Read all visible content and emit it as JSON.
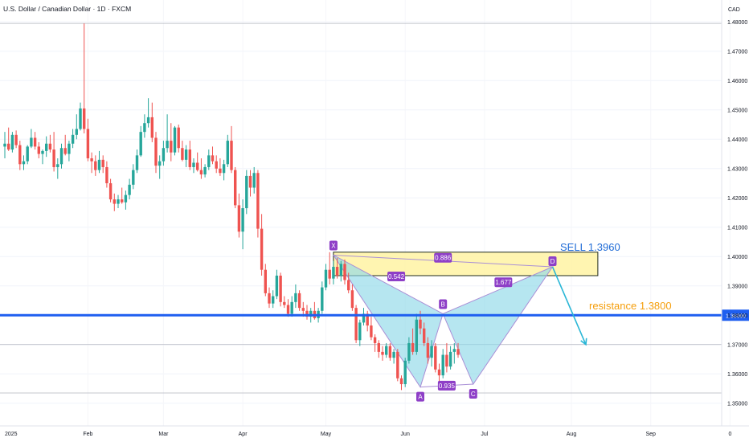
{
  "chart_data": {
    "type": "candlestick",
    "title": "U.S. Dollar / Canadian Dollar · 1D · FXCM",
    "currency": "CAD",
    "ylim": [
      1.345,
      1.482
    ],
    "y_ticks": [
      "1.48000",
      "1.47000",
      "1.46000",
      "1.45000",
      "1.44000",
      "1.43000",
      "1.42000",
      "1.41000",
      "1.40000",
      "1.39000",
      "1.38000",
      "1.37000",
      "1.36000",
      "1.35000"
    ],
    "x_ticks": [
      {
        "label": "2025",
        "i": 0
      },
      {
        "label": "Feb",
        "i": 22
      },
      {
        "label": "Mar",
        "i": 42
      },
      {
        "label": "Apr",
        "i": 63
      },
      {
        "label": "May",
        "i": 85
      },
      {
        "label": "Jun",
        "i": 106
      },
      {
        "label": "Jul",
        "i": 127
      },
      {
        "label": "Aug",
        "i": 150
      },
      {
        "label": "Sep",
        "i": 171
      },
      {
        "label": "0",
        "i": 192
      }
    ],
    "candles": [
      [
        1.4375,
        1.4425,
        1.4335,
        1.4385
      ],
      [
        1.4385,
        1.444,
        1.436,
        1.4365
      ],
      [
        1.4365,
        1.4425,
        1.4355,
        1.4415
      ],
      [
        1.4415,
        1.443,
        1.437,
        1.438
      ],
      [
        1.438,
        1.4395,
        1.4295,
        1.4315
      ],
      [
        1.4315,
        1.4345,
        1.4295,
        1.4325
      ],
      [
        1.4325,
        1.438,
        1.4315,
        1.4375
      ],
      [
        1.4375,
        1.4435,
        1.437,
        1.4405
      ],
      [
        1.4405,
        1.4425,
        1.4365,
        1.4375
      ],
      [
        1.4375,
        1.439,
        1.4335,
        1.435
      ],
      [
        1.435,
        1.4365,
        1.4315,
        1.436
      ],
      [
        1.436,
        1.441,
        1.434,
        1.4385
      ],
      [
        1.4385,
        1.4415,
        1.4355,
        1.4365
      ],
      [
        1.4365,
        1.4425,
        1.429,
        1.4305
      ],
      [
        1.4305,
        1.4335,
        1.4265,
        1.4315
      ],
      [
        1.4315,
        1.4385,
        1.43,
        1.437
      ],
      [
        1.437,
        1.4415,
        1.4345,
        1.435
      ],
      [
        1.435,
        1.4395,
        1.4325,
        1.4385
      ],
      [
        1.4385,
        1.4435,
        1.437,
        1.4415
      ],
      [
        1.4415,
        1.4485,
        1.44,
        1.4435
      ],
      [
        1.4435,
        1.4525,
        1.443,
        1.4505
      ],
      [
        1.4505,
        1.4795,
        1.442,
        1.4435
      ],
      [
        1.4435,
        1.447,
        1.4325,
        1.4335
      ],
      [
        1.4335,
        1.4355,
        1.4285,
        1.4325
      ],
      [
        1.4325,
        1.4345,
        1.4275,
        1.4295
      ],
      [
        1.4295,
        1.436,
        1.4285,
        1.433
      ],
      [
        1.433,
        1.4345,
        1.4285,
        1.4305
      ],
      [
        1.4305,
        1.4325,
        1.4235,
        1.425
      ],
      [
        1.425,
        1.4265,
        1.4185,
        1.4195
      ],
      [
        1.4195,
        1.4215,
        1.4155,
        1.418
      ],
      [
        1.418,
        1.421,
        1.4165,
        1.4195
      ],
      [
        1.4195,
        1.4235,
        1.418,
        1.4185
      ],
      [
        1.4185,
        1.4225,
        1.416,
        1.421
      ],
      [
        1.421,
        1.4265,
        1.4195,
        1.4245
      ],
      [
        1.4245,
        1.4315,
        1.423,
        1.4295
      ],
      [
        1.4295,
        1.4365,
        1.4285,
        1.4345
      ],
      [
        1.4345,
        1.4445,
        1.434,
        1.4425
      ],
      [
        1.4425,
        1.4485,
        1.4405,
        1.4455
      ],
      [
        1.4455,
        1.454,
        1.444,
        1.4475
      ],
      [
        1.4475,
        1.4525,
        1.439,
        1.4405
      ],
      [
        1.4405,
        1.4425,
        1.4285,
        1.431
      ],
      [
        1.431,
        1.4345,
        1.4265,
        1.4325
      ],
      [
        1.4325,
        1.4395,
        1.431,
        1.437
      ],
      [
        1.437,
        1.4485,
        1.4355,
        1.4395
      ],
      [
        1.4395,
        1.4455,
        1.4325,
        1.4355
      ],
      [
        1.4355,
        1.4445,
        1.4345,
        1.444
      ],
      [
        1.444,
        1.445,
        1.4355,
        1.437
      ],
      [
        1.437,
        1.4395,
        1.4325,
        1.433
      ],
      [
        1.433,
        1.438,
        1.4305,
        1.4365
      ],
      [
        1.4365,
        1.4395,
        1.4295,
        1.4305
      ],
      [
        1.4305,
        1.4335,
        1.4285,
        1.432
      ],
      [
        1.432,
        1.4355,
        1.429,
        1.4295
      ],
      [
        1.4295,
        1.4335,
        1.4265,
        1.428
      ],
      [
        1.428,
        1.4315,
        1.427,
        1.4305
      ],
      [
        1.4305,
        1.4365,
        1.4295,
        1.4345
      ],
      [
        1.4345,
        1.4375,
        1.4315,
        1.4325
      ],
      [
        1.4325,
        1.4345,
        1.4285,
        1.43
      ],
      [
        1.43,
        1.4335,
        1.4275,
        1.4285
      ],
      [
        1.4285,
        1.433,
        1.426,
        1.4315
      ],
      [
        1.4315,
        1.4415,
        1.4305,
        1.4395
      ],
      [
        1.4395,
        1.4445,
        1.4285,
        1.4295
      ],
      [
        1.4295,
        1.4305,
        1.4165,
        1.4175
      ],
      [
        1.4175,
        1.4215,
        1.4065,
        1.4085
      ],
      [
        1.4085,
        1.4195,
        1.4025,
        1.4165
      ],
      [
        1.4165,
        1.4295,
        1.4145,
        1.4275
      ],
      [
        1.4275,
        1.4295,
        1.4205,
        1.4235
      ],
      [
        1.4235,
        1.4305,
        1.4215,
        1.4285
      ],
      [
        1.4285,
        1.4295,
        1.4065,
        1.4095
      ],
      [
        1.4095,
        1.4145,
        1.3935,
        1.3955
      ],
      [
        1.3955,
        1.3975,
        1.3865,
        1.3875
      ],
      [
        1.3875,
        1.3895,
        1.3825,
        1.384
      ],
      [
        1.384,
        1.3885,
        1.3825,
        1.3865
      ],
      [
        1.3865,
        1.3955,
        1.3855,
        1.3935
      ],
      [
        1.3935,
        1.3945,
        1.383,
        1.3845
      ],
      [
        1.3845,
        1.3865,
        1.3825,
        1.3835
      ],
      [
        1.3835,
        1.3855,
        1.3795,
        1.3805
      ],
      [
        1.3805,
        1.3865,
        1.3795,
        1.3845
      ],
      [
        1.3845,
        1.3905,
        1.3825,
        1.3875
      ],
      [
        1.3875,
        1.3885,
        1.3815,
        1.3825
      ],
      [
        1.3825,
        1.3845,
        1.3795,
        1.3815
      ],
      [
        1.3815,
        1.3835,
        1.3785,
        1.3795
      ],
      [
        1.3795,
        1.3825,
        1.3775,
        1.3815
      ],
      [
        1.3815,
        1.3845,
        1.3785,
        1.379
      ],
      [
        1.379,
        1.3825,
        1.3775,
        1.3815
      ],
      [
        1.3815,
        1.3915,
        1.3805,
        1.3895
      ],
      [
        1.3895,
        1.3975,
        1.3885,
        1.3955
      ],
      [
        1.3955,
        1.4015,
        1.3905,
        1.3925
      ],
      [
        1.3925,
        1.3985,
        1.3905,
        1.3965
      ],
      [
        1.3965,
        1.3995,
        1.3925,
        1.3935
      ],
      [
        1.3935,
        1.3985,
        1.3915,
        1.3975
      ],
      [
        1.3975,
        1.399,
        1.3905,
        1.392
      ],
      [
        1.392,
        1.3945,
        1.3875,
        1.3885
      ],
      [
        1.3885,
        1.3905,
        1.3815,
        1.3825
      ],
      [
        1.3825,
        1.3835,
        1.3705,
        1.3715
      ],
      [
        1.3715,
        1.3785,
        1.3695,
        1.3775
      ],
      [
        1.3775,
        1.3825,
        1.3765,
        1.3805
      ],
      [
        1.3805,
        1.3815,
        1.3745,
        1.3765
      ],
      [
        1.3765,
        1.3795,
        1.3715,
        1.3725
      ],
      [
        1.3725,
        1.3735,
        1.3675,
        1.3705
      ],
      [
        1.3705,
        1.3715,
        1.3655,
        1.3675
      ],
      [
        1.3675,
        1.3695,
        1.3645,
        1.3665
      ],
      [
        1.3665,
        1.3705,
        1.3655,
        1.3695
      ],
      [
        1.3695,
        1.3705,
        1.3645,
        1.3655
      ],
      [
        1.3655,
        1.3685,
        1.3635,
        1.3675
      ],
      [
        1.3675,
        1.3685,
        1.3575,
        1.3585
      ],
      [
        1.3585,
        1.3595,
        1.3545,
        1.3565
      ],
      [
        1.3565,
        1.3655,
        1.3555,
        1.3645
      ],
      [
        1.3645,
        1.3725,
        1.3635,
        1.3705
      ],
      [
        1.3705,
        1.3755,
        1.3665,
        1.3675
      ],
      [
        1.3675,
        1.3805,
        1.3665,
        1.3785
      ],
      [
        1.3785,
        1.3815,
        1.3735,
        1.3755
      ],
      [
        1.3755,
        1.3775,
        1.3695,
        1.3705
      ],
      [
        1.3705,
        1.3725,
        1.3635,
        1.3655
      ],
      [
        1.3655,
        1.3715,
        1.3625,
        1.3695
      ],
      [
        1.3695,
        1.3705,
        1.3605,
        1.3615
      ],
      [
        1.3615,
        1.3635,
        1.3565,
        1.3595
      ],
      [
        1.3595,
        1.3685,
        1.3585,
        1.3665
      ],
      [
        1.3665,
        1.3705,
        1.3605,
        1.3625
      ],
      [
        1.3625,
        1.3695,
        1.3615,
        1.3675
      ],
      [
        1.3675,
        1.3705,
        1.3635,
        1.3685
      ],
      [
        1.3685,
        1.3705,
        1.3655,
        1.3665
      ]
    ],
    "harmonic_pattern": {
      "points": {
        "X": [
          87,
          1.4005
        ],
        "A": [
          110,
          1.3555
        ],
        "B": [
          116,
          1.3805
        ],
        "C": [
          124,
          1.3565
        ],
        "D": [
          145,
          1.3965
        ]
      },
      "labels": [
        "X",
        "A",
        "B",
        "C",
        "D"
      ],
      "ratios": {
        "XB": "0.542",
        "AC": "0.935",
        "BD": "1.677",
        "XD": "0.886"
      }
    },
    "zone": {
      "top": 1.4015,
      "bottom": 1.3935,
      "i_start": 87,
      "i_end": 157
    },
    "resistance_line": {
      "value": 1.38,
      "label": "1.38000"
    },
    "reference_lines": [
      1.37,
      1.3535,
      1.4795
    ],
    "projection_arrow": {
      "from": [
        145,
        1.3965
      ],
      "to": [
        150,
        1.37
      ]
    },
    "annotations": {
      "sell": "SELL 1.3960",
      "resistance": "resistance 1.3800"
    },
    "colors": {
      "up": "#26a69a",
      "down": "#ef5350",
      "zone_fill": "#fff3a3",
      "zone_stroke": "#1f2a1f",
      "pattern_fill": "#8fd8e8",
      "pattern_stroke": "#a98fd6",
      "label_bg": "#8e3fc7",
      "resistance_line": "#1e5ef0",
      "sell_text": "#1f6bd6",
      "resistance_text": "#f59e0b",
      "arrow": "#29b6d6"
    }
  }
}
